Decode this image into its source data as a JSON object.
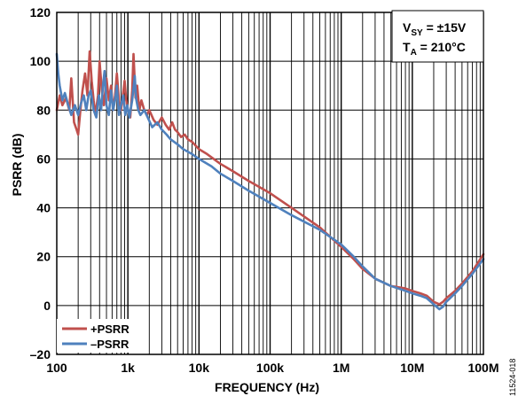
{
  "chart_data": {
    "type": "line",
    "xscale": "log",
    "xlabel": "FREQUENCY (Hz)",
    "ylabel": "PSRR (dB)",
    "xlim": [
      100,
      100000000
    ],
    "ylim": [
      -20,
      120
    ],
    "x_ticks": [
      {
        "value": 100,
        "label": "100"
      },
      {
        "value": 1000,
        "label": "1k"
      },
      {
        "value": 10000,
        "label": "10k"
      },
      {
        "value": 100000,
        "label": "100k"
      },
      {
        "value": 1000000,
        "label": "1M"
      },
      {
        "value": 10000000,
        "label": "10M"
      },
      {
        "value": 100000000,
        "label": "100M"
      }
    ],
    "y_ticks": [
      {
        "value": -20,
        "label": "–20"
      },
      {
        "value": 0,
        "label": "0"
      },
      {
        "value": 20,
        "label": "20"
      },
      {
        "value": 40,
        "label": "40"
      },
      {
        "value": 60,
        "label": "60"
      },
      {
        "value": 80,
        "label": "80"
      },
      {
        "value": 100,
        "label": "100"
      },
      {
        "value": 120,
        "label": "120"
      }
    ],
    "grid": true,
    "legend_position": "bottom-left",
    "conditions": {
      "line1_main": "V",
      "line1_sub": "SY",
      "line1_rest": " = ±15V",
      "line2_main": "T",
      "line2_sub": "A",
      "line2_rest": " = 210°C"
    },
    "series": [
      {
        "name": "+PSRR",
        "color": "#c0504d",
        "points": [
          [
            100,
            80
          ],
          [
            110,
            86
          ],
          [
            120,
            82
          ],
          [
            135,
            85
          ],
          [
            150,
            80
          ],
          [
            160,
            93
          ],
          [
            175,
            75
          ],
          [
            190,
            72
          ],
          [
            200,
            70
          ],
          [
            215,
            80
          ],
          [
            230,
            88
          ],
          [
            250,
            95
          ],
          [
            270,
            86
          ],
          [
            290,
            104
          ],
          [
            310,
            92
          ],
          [
            330,
            84
          ],
          [
            350,
            78
          ],
          [
            380,
            86
          ],
          [
            400,
            100
          ],
          [
            430,
            88
          ],
          [
            460,
            82
          ],
          [
            500,
            93
          ],
          [
            540,
            84
          ],
          [
            580,
            90
          ],
          [
            620,
            80
          ],
          [
            660,
            86
          ],
          [
            700,
            95
          ],
          [
            750,
            84
          ],
          [
            800,
            80
          ],
          [
            850,
            86
          ],
          [
            900,
            92
          ],
          [
            950,
            84
          ],
          [
            1000,
            80
          ],
          [
            1080,
            77
          ],
          [
            1150,
            88
          ],
          [
            1200,
            103
          ],
          [
            1280,
            85
          ],
          [
            1350,
            90
          ],
          [
            1450,
            80
          ],
          [
            1550,
            84
          ],
          [
            1700,
            80
          ],
          [
            1850,
            78
          ],
          [
            2000,
            80
          ],
          [
            2300,
            76
          ],
          [
            2600,
            74
          ],
          [
            3000,
            77
          ],
          [
            3400,
            74
          ],
          [
            3800,
            72
          ],
          [
            4200,
            75
          ],
          [
            4600,
            72
          ],
          [
            5000,
            71
          ],
          [
            5600,
            69
          ],
          [
            6300,
            70
          ],
          [
            7000,
            68
          ],
          [
            8000,
            67
          ],
          [
            10000,
            64
          ],
          [
            13000,
            62
          ],
          [
            20000,
            58
          ],
          [
            30000,
            55
          ],
          [
            50000,
            51
          ],
          [
            100000,
            46
          ],
          [
            200000,
            40
          ],
          [
            500000,
            32
          ],
          [
            1000000,
            24
          ],
          [
            1500000,
            19
          ],
          [
            2000000,
            15
          ],
          [
            3000000,
            11
          ],
          [
            5000000,
            8
          ],
          [
            8000000,
            7
          ],
          [
            10000000,
            6
          ],
          [
            13000000,
            5
          ],
          [
            16000000,
            4
          ],
          [
            20000000,
            1.5
          ],
          [
            24000000,
            0.5
          ],
          [
            27000000,
            1.5
          ],
          [
            30000000,
            3
          ],
          [
            40000000,
            6
          ],
          [
            50000000,
            9
          ],
          [
            70000000,
            14
          ],
          [
            100000000,
            21
          ]
        ]
      },
      {
        "name": "–PSRR",
        "color": "#4f81bd",
        "points": [
          [
            100,
            103
          ],
          [
            105,
            95
          ],
          [
            110,
            90
          ],
          [
            120,
            84
          ],
          [
            130,
            87
          ],
          [
            145,
            82
          ],
          [
            160,
            78
          ],
          [
            180,
            82
          ],
          [
            200,
            78
          ],
          [
            220,
            83
          ],
          [
            240,
            86
          ],
          [
            260,
            80
          ],
          [
            280,
            86
          ],
          [
            300,
            88
          ],
          [
            330,
            80
          ],
          [
            360,
            77
          ],
          [
            390,
            86
          ],
          [
            420,
            80
          ],
          [
            450,
            91
          ],
          [
            470,
            96
          ],
          [
            500,
            82
          ],
          [
            540,
            78
          ],
          [
            580,
            88
          ],
          [
            620,
            80
          ],
          [
            660,
            84
          ],
          [
            700,
            90
          ],
          [
            750,
            78
          ],
          [
            800,
            82
          ],
          [
            860,
            86
          ],
          [
            920,
            78
          ],
          [
            980,
            82
          ],
          [
            1050,
            77
          ],
          [
            1150,
            84
          ],
          [
            1250,
            94
          ],
          [
            1300,
            85
          ],
          [
            1400,
            80
          ],
          [
            1500,
            78
          ],
          [
            1700,
            80
          ],
          [
            1900,
            77
          ],
          [
            2200,
            73
          ],
          [
            2600,
            75
          ],
          [
            3000,
            72
          ],
          [
            3500,
            70
          ],
          [
            4000,
            68
          ],
          [
            5000,
            66
          ],
          [
            6000,
            64
          ],
          [
            8000,
            62
          ],
          [
            10000,
            60
          ],
          [
            15000,
            57
          ],
          [
            20000,
            54
          ],
          [
            30000,
            51
          ],
          [
            50000,
            47
          ],
          [
            100000,
            42
          ],
          [
            200000,
            37
          ],
          [
            500000,
            31
          ],
          [
            1000000,
            25
          ],
          [
            1500000,
            20
          ],
          [
            2000000,
            16
          ],
          [
            3000000,
            11
          ],
          [
            5000000,
            8
          ],
          [
            8000000,
            6
          ],
          [
            10000000,
            5
          ],
          [
            13000000,
            4
          ],
          [
            16000000,
            3
          ],
          [
            20000000,
            0.5
          ],
          [
            24000000,
            -1.5
          ],
          [
            27000000,
            -0.5
          ],
          [
            30000000,
            1.5
          ],
          [
            40000000,
            5
          ],
          [
            50000000,
            8
          ],
          [
            70000000,
            13
          ],
          [
            100000000,
            19
          ]
        ]
      }
    ]
  },
  "figure_code": "11524-018"
}
